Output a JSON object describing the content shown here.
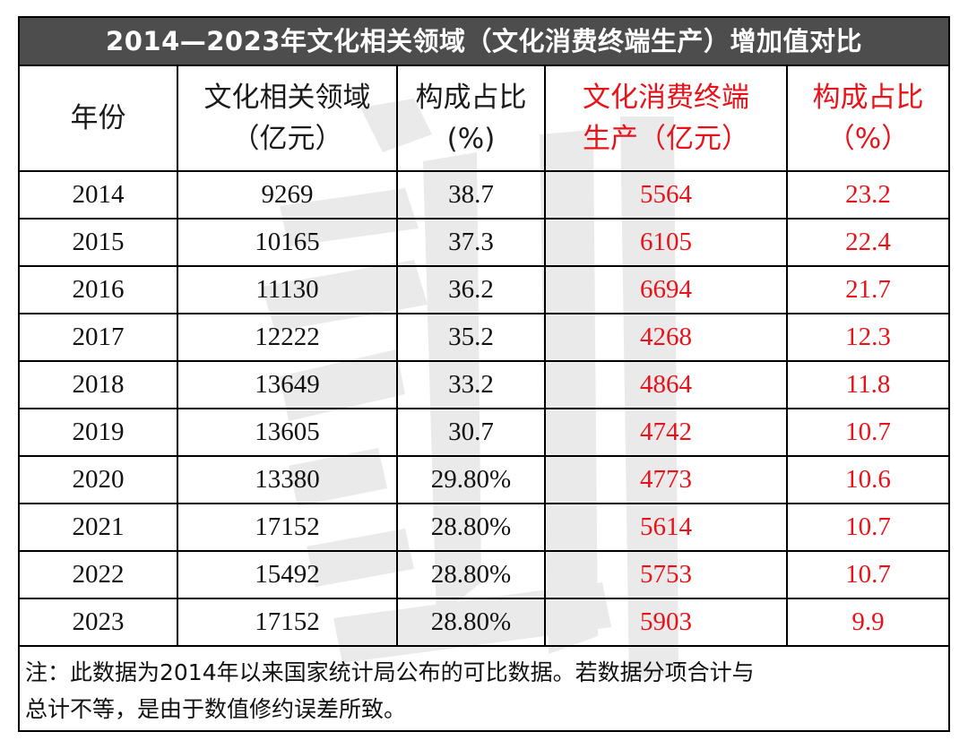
{
  "title": "2014—2023年文化相关领域（文化消费终端生产）增加值对比",
  "headers": {
    "year": "年份",
    "related_line1": "文化相关领域",
    "related_line2": "（亿元）",
    "share1_line1": "构成占比",
    "share1_line2": "(%)",
    "terminal_line1": "文化消费终端",
    "terminal_line2": "生产（亿元）",
    "share2_line1": "构成占比",
    "share2_line2": "（%）"
  },
  "rows": [
    {
      "year": "2014",
      "related": "9269",
      "share1": "38.7",
      "terminal": "5564",
      "share2": "23.2"
    },
    {
      "year": "2015",
      "related": "10165",
      "share1": "37.3",
      "terminal": "6105",
      "share2": "22.4"
    },
    {
      "year": "2016",
      "related": "11130",
      "share1": "36.2",
      "terminal": "6694",
      "share2": "21.7"
    },
    {
      "year": "2017",
      "related": "12222",
      "share1": "35.2",
      "terminal": "4268",
      "share2": "12.3"
    },
    {
      "year": "2018",
      "related": "13649",
      "share1": "33.2",
      "terminal": "4864",
      "share2": "11.8"
    },
    {
      "year": "2019",
      "related": "13605",
      "share1": "30.7",
      "terminal": "4742",
      "share2": "10.7"
    },
    {
      "year": "2020",
      "related": "13380",
      "share1": "29.80%",
      "terminal": "4773",
      "share2": "10.6"
    },
    {
      "year": "2021",
      "related": "17152",
      "share1": "28.80%",
      "terminal": "5614",
      "share2": "10.7"
    },
    {
      "year": "2022",
      "related": "15492",
      "share1": "28.80%",
      "terminal": "5753",
      "share2": "10.7"
    },
    {
      "year": "2023",
      "related": "17152",
      "share1": "28.80%",
      "terminal": "5903",
      "share2": "9.9"
    }
  ],
  "note_line1": "注：此数据为2014年以来国家统计局公布的可比数据。若数据分项合计与",
  "note_line2": "总计不等，是由于数值修约误差所致。",
  "colors": {
    "accent_red": "#e8131a",
    "title_bg": "#4d4d4d"
  }
}
